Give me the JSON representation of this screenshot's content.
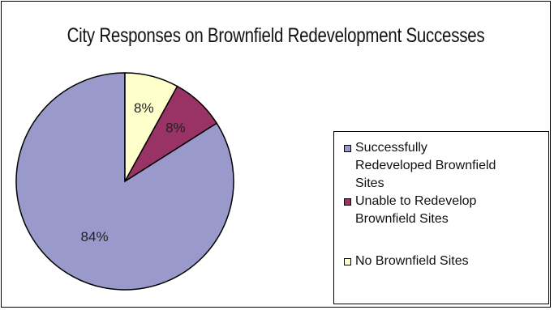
{
  "chart_data": {
    "type": "pie",
    "title": "City Responses on Brownfield Redevelopment Successes",
    "labels": [
      "Successfully Redeveloped Brownfield Sites",
      "Unable to Redevelop Brownfield Sites",
      "No Brownfield Sites"
    ],
    "values": [
      84,
      8,
      8
    ],
    "value_labels": [
      "84%",
      "8%",
      "8%"
    ],
    "colors": [
      "#9999cc",
      "#993366",
      "#ffffcc"
    ],
    "legend_position": "right",
    "legend_lines": [
      [
        "Successfully",
        "Redeveloped Brownfield",
        "Sites"
      ],
      [
        "Unable to Redevelop",
        "Brownfield Sites"
      ],
      [
        "No Brownfield Sites"
      ]
    ]
  }
}
